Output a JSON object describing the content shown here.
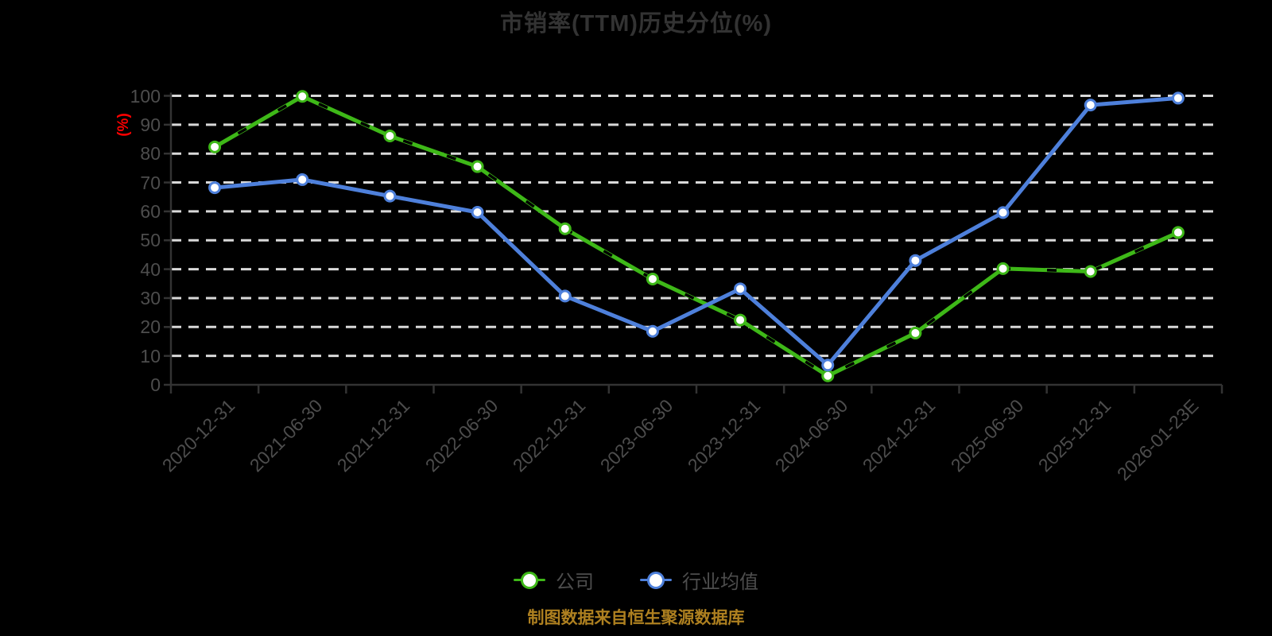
{
  "title": "市销率(TTM)历史分位(%)",
  "y_axis_unit_label": "(%)",
  "footer_note": "制图数据来自恒生聚源数据库",
  "colors": {
    "background": "#000000",
    "title": "#333333",
    "axis": "#333333",
    "grid": "#D9D9D9",
    "tick_label": "#4D4D4D",
    "unit_label": "#FF0000",
    "footer": "#AE8020",
    "company": "#3EB818",
    "industry": "#4E80DB",
    "marker_fill": "#FFFFFF"
  },
  "chart_data": {
    "type": "line",
    "title": "市销率(TTM)历史分位(%)",
    "categories": [
      "2020-12-31",
      "2021-06-30",
      "2021-12-31",
      "2022-06-30",
      "2022-12-31",
      "2023-06-30",
      "2023-12-31",
      "2024-06-30",
      "2024-12-31",
      "2025-06-30",
      "2025-12-31",
      "2026-01-23E"
    ],
    "series": [
      {
        "name": "公司",
        "color": "#3EB818",
        "marker": "white-filled-circle",
        "values": [
          82.3,
          99.8,
          86.1,
          75.5,
          54.0,
          36.6,
          22.4,
          3.1,
          17.9,
          40.2,
          39.2,
          52.7
        ]
      },
      {
        "name": "行业均值",
        "color": "#4E80DB",
        "marker": "white-filled-circle",
        "values": [
          68.2,
          71.0,
          65.3,
          59.7,
          30.7,
          18.5,
          33.2,
          6.8,
          43.0,
          59.6,
          96.8,
          99.2
        ]
      }
    ],
    "xlabel": "",
    "ylabel": "(%)",
    "ylim": [
      0,
      100
    ],
    "y_ticks": [
      0,
      10,
      20,
      30,
      40,
      50,
      60,
      70,
      80,
      90,
      100
    ],
    "grid": "horizontal-dashed",
    "x_label_rotation_deg": -45,
    "legend_position": "bottom",
    "source_note": "制图数据来自恒生聚源数据库"
  }
}
